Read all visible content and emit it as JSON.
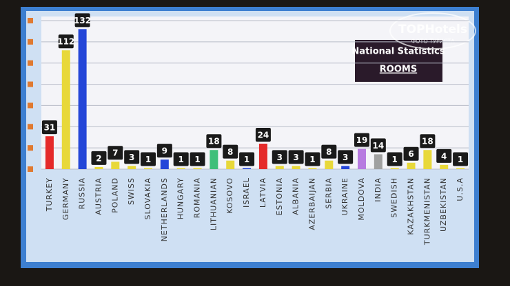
{
  "chart_data": {
    "type": "bar",
    "title": "National Statistics",
    "subtitle": "ROOMS",
    "categories": [
      "TURKEY",
      "GERMANY",
      "RUSSIA",
      "AUSTRIA",
      "POLAND",
      "SWISS",
      "SLOVAKIA",
      "NETHERLANDS",
      "HUNGARY",
      "ROMANIA",
      "LITHUANIAN",
      "KOSOVO",
      "ISRAEL",
      "LATVIA",
      "ESTONIA",
      "ALBANIA",
      "AZERBAIJAN",
      "SERBIA",
      "UKRAINE",
      "MOLDOVA",
      "INDIA",
      "SWEDISH",
      "KAZAKHSTAN",
      "TURKMENISTAN",
      "UZBEKISTAN",
      "U.S.A"
    ],
    "values": [
      31,
      112,
      132,
      2,
      7,
      3,
      1,
      9,
      1,
      1,
      18,
      8,
      1,
      24,
      3,
      3,
      1,
      8,
      3,
      19,
      14,
      1,
      6,
      18,
      4,
      1
    ],
    "colors": [
      "#e52a2a",
      "#e8d83a",
      "#2446d8",
      "#e8d83a",
      "#e8d83a",
      "#e8d83a",
      "#e8d83a",
      "#2446d8",
      "#e8d83a",
      "#e8d83a",
      "#3fbf7a",
      "#e8d83a",
      "#2446d8",
      "#e52a2a",
      "#e8d83a",
      "#e8d83a",
      "#e8d83a",
      "#e8d83a",
      "#2446d8",
      "#b77be0",
      "#a0a0a0",
      "#e8d83a",
      "#e8d83a",
      "#e8d83a",
      "#e8d83a",
      "#e8d83a"
    ],
    "ylim": [
      0,
      140
    ],
    "yticks": [
      0,
      20,
      40,
      60,
      80,
      100,
      120,
      140
    ],
    "grid": true
  },
  "watermark": {
    "title": "TOPHotels",
    "subtitle": "ФОТО ТУРИСТА"
  }
}
